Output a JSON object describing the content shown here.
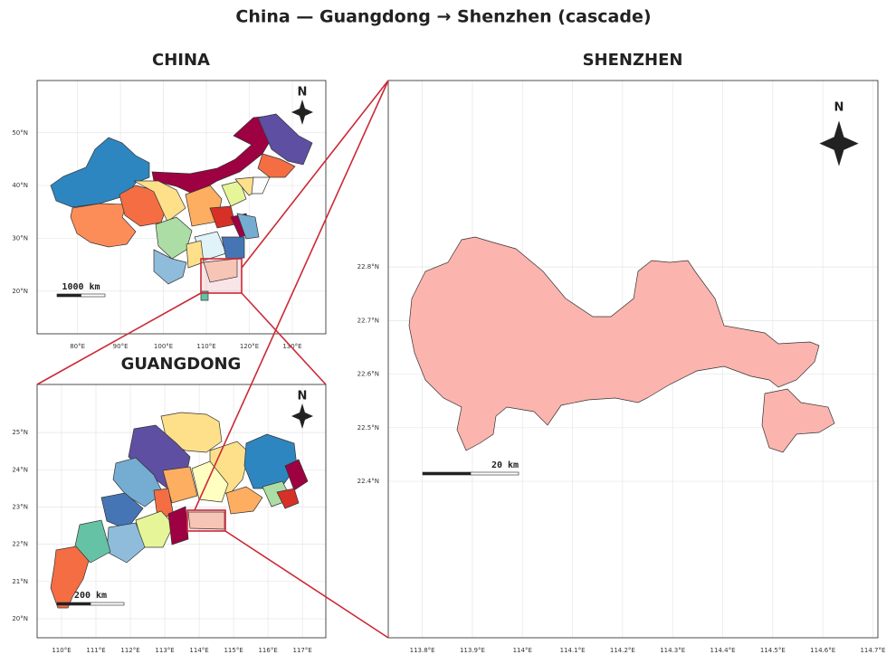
{
  "title": "China — Guangdong → Shenzhen (cascade)",
  "panels": [
    {
      "title": "CHINA",
      "north": "N",
      "scale_label": "1000 km",
      "xlim": [
        70.6,
        137.8
      ],
      "ylim": [
        11.9,
        59.9
      ],
      "xticks": [
        {
          "value": 80,
          "label": "80°E"
        },
        {
          "value": 90,
          "label": "90°E"
        },
        {
          "value": 100,
          "label": "100°E"
        },
        {
          "value": 110,
          "label": "110°E"
        },
        {
          "value": 120,
          "label": "120°E"
        },
        {
          "value": 130,
          "label": "130°E"
        }
      ],
      "yticks": [
        {
          "value": 20,
          "label": "20°N"
        },
        {
          "value": 30,
          "label": "30°N"
        },
        {
          "value": 40,
          "label": "40°N"
        },
        {
          "value": 50,
          "label": "50°N"
        }
      ]
    },
    {
      "title": "GUANGDONG",
      "north": "N",
      "scale_label": "200 km",
      "xlim": [
        109.29,
        117.68
      ],
      "ylim": [
        19.49,
        26.29
      ],
      "xticks": [
        {
          "value": 110,
          "label": "110°E"
        },
        {
          "value": 111,
          "label": "111°E"
        },
        {
          "value": 112,
          "label": "112°E"
        },
        {
          "value": 113,
          "label": "113°E"
        },
        {
          "value": 114,
          "label": "114°E"
        },
        {
          "value": 115,
          "label": "115°E"
        },
        {
          "value": 116,
          "label": "116°E"
        },
        {
          "value": 117,
          "label": "117°E"
        }
      ],
      "yticks": [
        {
          "value": 20,
          "label": "20°N"
        },
        {
          "value": 21,
          "label": "21°N"
        },
        {
          "value": 22,
          "label": "22°N"
        },
        {
          "value": 23,
          "label": "23°N"
        },
        {
          "value": 24,
          "label": "24°N"
        },
        {
          "value": 25,
          "label": "25°N"
        }
      ]
    },
    {
      "title": "SHENZHEN",
      "north": "N",
      "scale_label": "20 km",
      "xlim": [
        113.732,
        114.71
      ],
      "ylim": [
        22.108,
        23.148
      ],
      "xticks": [
        {
          "value": 113.8,
          "label": "113.8°E"
        },
        {
          "value": 113.9,
          "label": "113.9°E"
        },
        {
          "value": 114,
          "label": "114°E"
        },
        {
          "value": 114.1,
          "label": "114.1°E"
        },
        {
          "value": 114.2,
          "label": "114.2°E"
        },
        {
          "value": 114.3,
          "label": "114.3°E"
        },
        {
          "value": 114.4,
          "label": "114.4°E"
        },
        {
          "value": 114.5,
          "label": "114.5°E"
        },
        {
          "value": 114.6,
          "label": "114.6°E"
        },
        {
          "value": 114.7,
          "label": "114.7°E"
        }
      ],
      "yticks": [
        {
          "value": 22.4,
          "label": "22.4°N"
        },
        {
          "value": 22.5,
          "label": "22.5°N"
        },
        {
          "value": 22.6,
          "label": "22.6°N"
        },
        {
          "value": 22.7,
          "label": "22.7°N"
        },
        {
          "value": 22.8,
          "label": "22.8°N"
        }
      ]
    }
  ]
}
